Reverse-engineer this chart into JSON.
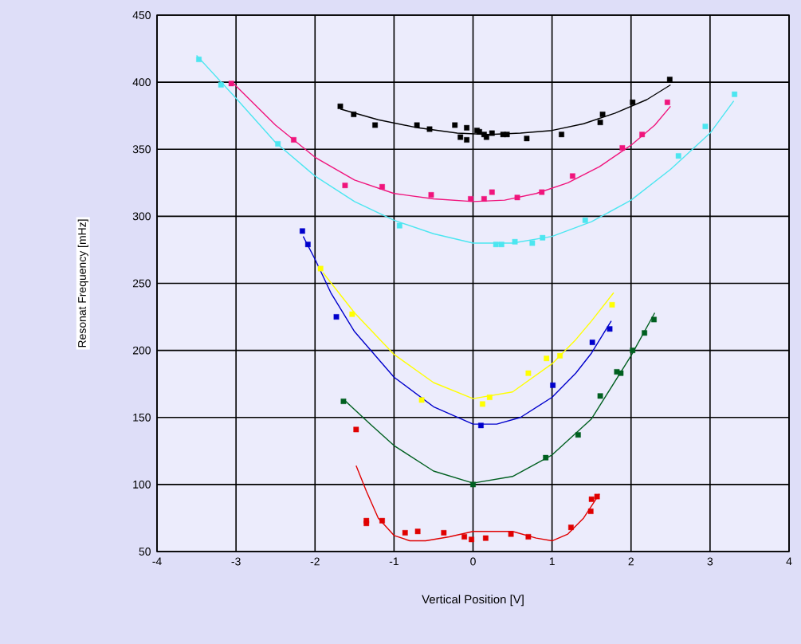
{
  "chart_data": {
    "type": "scatter",
    "xlabel": "Vertical Position [V]",
    "ylabel": "Resonat Frequency [mHz]",
    "xlim": [
      -4,
      4
    ],
    "ylim": [
      50,
      450
    ],
    "xticks": [
      -4,
      -3,
      -2,
      -1,
      0,
      1,
      2,
      3,
      4
    ],
    "yticks": [
      50,
      100,
      150,
      200,
      250,
      300,
      350,
      400,
      450
    ],
    "grid": true,
    "marker": "square",
    "series": [
      {
        "color": "#000000",
        "x": [
          -1.68,
          -1.51,
          -1.24,
          -0.71,
          -0.55,
          -0.23,
          -0.16,
          -0.08,
          -0.08,
          0.05,
          0.08,
          0.14,
          0.17,
          0.24,
          0.38,
          0.43,
          0.68,
          1.12,
          1.61,
          1.64,
          2.02,
          2.49
        ],
        "values": [
          382,
          376,
          368,
          368,
          365,
          368,
          359,
          357,
          366,
          364,
          363,
          361,
          359,
          362,
          361,
          361,
          358,
          361,
          370,
          376,
          385,
          402
        ]
      },
      {
        "type": "line",
        "color": "#000000",
        "marker": "none",
        "x": [
          -1.68,
          -1.2,
          -0.7,
          -0.2,
          0.2,
          0.6,
          1.0,
          1.4,
          1.8,
          2.2,
          2.5
        ],
        "values": [
          380,
          372,
          366,
          362,
          361,
          362,
          364,
          369,
          377,
          387,
          398
        ]
      },
      {
        "color": "#f0147c",
        "x": [
          -3.06,
          -2.27,
          -1.62,
          -1.15,
          -0.53,
          -0.03,
          0.14,
          0.24,
          0.56,
          0.87,
          1.26,
          1.89,
          2.14,
          2.46
        ],
        "values": [
          399,
          357,
          323,
          322,
          316,
          313,
          313,
          318,
          314,
          318,
          330,
          351,
          361,
          385
        ]
      },
      {
        "type": "line",
        "color": "#f0147c",
        "marker": "none",
        "x": [
          -3.05,
          -2.5,
          -2.0,
          -1.5,
          -1.0,
          -0.5,
          0.0,
          0.4,
          0.8,
          1.2,
          1.6,
          2.0,
          2.3,
          2.5
        ],
        "values": [
          400,
          368,
          344,
          327,
          317,
          313,
          311,
          312,
          317,
          325,
          337,
          353,
          368,
          382
        ]
      },
      {
        "color": "#4ce6f0",
        "x": [
          -3.47,
          -3.19,
          -2.47,
          -0.93,
          0.29,
          0.36,
          0.53,
          0.75,
          0.88,
          1.42,
          2.6,
          2.94,
          3.31
        ],
        "values": [
          417,
          398,
          354,
          293,
          279,
          279,
          281,
          280,
          284,
          297,
          345,
          367,
          391
        ]
      },
      {
        "type": "line",
        "color": "#4ce6f0",
        "marker": "none",
        "x": [
          -3.5,
          -3.0,
          -2.5,
          -2.0,
          -1.5,
          -1.0,
          -0.5,
          0.0,
          0.5,
          1.0,
          1.5,
          2.0,
          2.5,
          3.0,
          3.3
        ],
        "values": [
          420,
          388,
          355,
          330,
          311,
          297,
          287,
          280,
          280,
          285,
          296,
          312,
          335,
          362,
          386
        ]
      },
      {
        "color": "#0000cc",
        "x": [
          -2.16,
          -2.09,
          -1.73,
          0.1,
          1.01,
          1.51,
          1.73
        ],
        "values": [
          289,
          279,
          225,
          144,
          174,
          206,
          216
        ]
      },
      {
        "type": "line",
        "color": "#0000cc",
        "marker": "none",
        "x": [
          -2.15,
          -2.0,
          -1.8,
          -1.5,
          -1.0,
          -0.5,
          0.0,
          0.3,
          0.6,
          1.0,
          1.3,
          1.5,
          1.75
        ],
        "values": [
          285,
          268,
          243,
          214,
          180,
          158,
          145,
          145,
          150,
          165,
          183,
          198,
          222
        ]
      },
      {
        "color": "#ffff00",
        "x": [
          -1.93,
          -1.53,
          -0.65,
          0.12,
          0.21,
          0.7,
          0.93,
          1.1,
          1.76
        ],
        "values": [
          261,
          227,
          163,
          160,
          165,
          183,
          194,
          196,
          234
        ]
      },
      {
        "type": "line",
        "color": "#ffff00",
        "marker": "none",
        "x": [
          -1.9,
          -1.5,
          -1.0,
          -0.5,
          0.0,
          0.5,
          1.0,
          1.3,
          1.5,
          1.78
        ],
        "values": [
          258,
          228,
          197,
          176,
          164,
          169,
          190,
          208,
          222,
          243
        ]
      },
      {
        "color": "#006020",
        "x": [
          -1.64,
          0.0,
          0.92,
          1.33,
          1.61,
          1.82,
          1.87,
          2.02,
          2.17,
          2.29
        ],
        "values": [
          162,
          100,
          120,
          137,
          166,
          184,
          183,
          200,
          213,
          223
        ]
      },
      {
        "type": "line",
        "color": "#006020",
        "marker": "none",
        "x": [
          -1.63,
          -1.3,
          -1.0,
          -0.5,
          0.0,
          0.5,
          1.0,
          1.5,
          2.0,
          2.3
        ],
        "values": [
          163,
          145,
          129,
          110,
          101,
          106,
          122,
          149,
          196,
          228
        ]
      },
      {
        "color": "#e00000",
        "x": [
          -1.48,
          -1.35,
          -1.35,
          -1.15,
          -0.86,
          -0.7,
          -0.37,
          -0.11,
          -0.02,
          0.16,
          0.48,
          0.7,
          1.24,
          1.49,
          1.5,
          1.57
        ],
        "values": [
          141,
          73,
          71,
          73,
          64,
          65,
          64,
          61,
          59,
          60,
          63,
          61,
          68,
          80,
          89,
          91
        ]
      },
      {
        "type": "line",
        "color": "#e00000",
        "marker": "none",
        "x": [
          -1.48,
          -1.35,
          -1.2,
          -1.0,
          -0.8,
          -0.6,
          -0.3,
          0.0,
          0.5,
          0.8,
          1.0,
          1.2,
          1.4,
          1.6
        ],
        "values": [
          114,
          95,
          75,
          62,
          58,
          58,
          61,
          65,
          65,
          60,
          58,
          63,
          75,
          93
        ]
      }
    ]
  }
}
